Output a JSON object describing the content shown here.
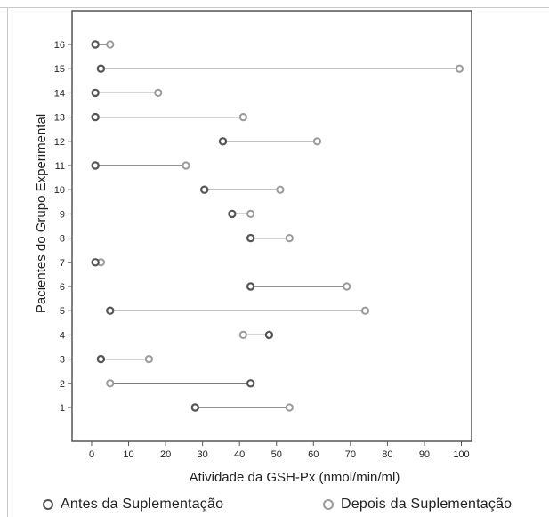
{
  "chart_data": {
    "type": "dumbbell",
    "xlabel": "Atividade da GSH-Px (nmol/min/ml)",
    "ylabel": "Pacientes do Grupo Experimental",
    "xlim": [
      0,
      100
    ],
    "xticks": [
      0,
      10,
      20,
      30,
      40,
      50,
      60,
      70,
      80,
      90,
      100
    ],
    "categories": [
      "1",
      "2",
      "3",
      "4",
      "5",
      "6",
      "7",
      "8",
      "9",
      "10",
      "11",
      "12",
      "13",
      "14",
      "15",
      "16"
    ],
    "series": [
      {
        "name": "Antes da Suplementação",
        "color": "#555555",
        "values": [
          28,
          43,
          2.5,
          48,
          5,
          43,
          1,
          43,
          38,
          30.5,
          1,
          35.5,
          1,
          1,
          2.5,
          1
        ]
      },
      {
        "name": "Depois da Suplementação",
        "color": "#9a9a9a",
        "values": [
          53.5,
          5,
          15.5,
          41,
          74,
          69,
          2.5,
          53.5,
          43,
          51,
          25.5,
          61,
          41,
          18,
          99.5,
          5
        ]
      }
    ],
    "grid": false,
    "legend_position": "bottom"
  }
}
